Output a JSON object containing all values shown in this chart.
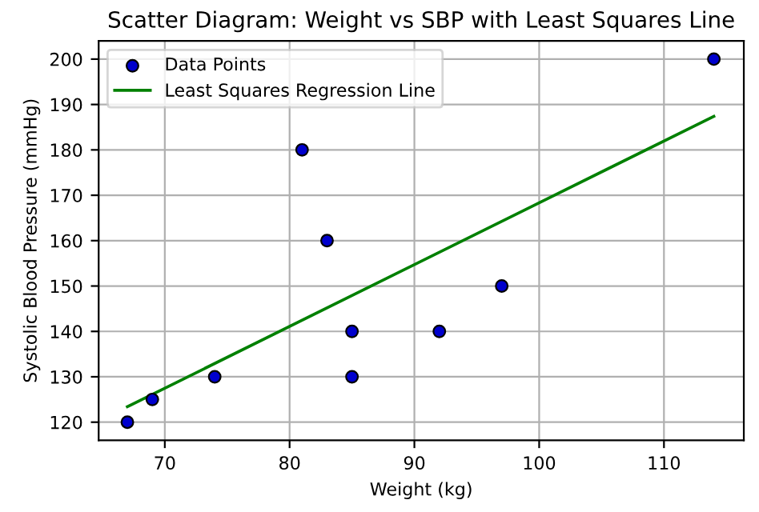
{
  "chart_data": {
    "type": "scatter",
    "title": "Scatter Diagram: Weight vs SBP with Least Squares Line",
    "xlabel": "Weight (kg)",
    "ylabel": "Systolic Blood Pressure (mmHg)",
    "series": [
      {
        "name": "Data Points",
        "color": "#0000cd",
        "marker": "circle",
        "x": [
          67,
          69,
          74,
          81,
          83,
          85,
          85,
          92,
          97,
          114
        ],
        "values": [
          120,
          125,
          130,
          180,
          160,
          140,
          130,
          140,
          150,
          200
        ]
      },
      {
        "name": "Least Squares Regression Line",
        "type": "line",
        "color": "#008000",
        "marker": "none",
        "line_style": "solid",
        "x": [
          67,
          114
        ],
        "values": [
          123.4,
          187.4
        ]
      }
    ],
    "xlim": [
      64.7,
      116.4
    ],
    "ylim": [
      116,
      204
    ],
    "xticks": [
      70,
      80,
      90,
      100,
      110
    ],
    "yticks": [
      120,
      130,
      140,
      150,
      160,
      170,
      180,
      190,
      200
    ],
    "grid": true,
    "legend": "top left"
  }
}
